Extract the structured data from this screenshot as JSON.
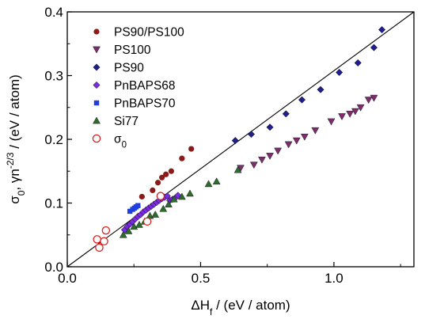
{
  "chart_data": {
    "type": "scatter",
    "xlim": [
      0.0,
      1.3
    ],
    "ylim": [
      0.0,
      0.4
    ],
    "xticks": [
      "0.0",
      "0.5",
      "1.0"
    ],
    "xtick_values": [
      0.0,
      0.5,
      1.0
    ],
    "yticks": [
      "0.0",
      "0.1",
      "0.2",
      "0.3",
      "0.4"
    ],
    "ytick_values": [
      0.0,
      0.1,
      0.2,
      0.3,
      0.4
    ],
    "xlabel": {
      "prefix": "ΔH",
      "sub": "f",
      "suffix": " / (eV / atom)"
    },
    "ylabel": {
      "a": "σ",
      "a_sub": "0",
      "b": ", γn",
      "b_sup": "-2/3",
      "c": " / (eV / atom)"
    },
    "legend_position": "top-left",
    "line": {
      "x": [
        0.0,
        1.3
      ],
      "y": [
        0.0,
        0.4
      ]
    },
    "series": [
      {
        "name": "PS90/PS100",
        "marker": "circle",
        "color": "#8B1A1A",
        "points": [
          [
            0.28,
            0.11
          ],
          [
            0.32,
            0.12
          ],
          [
            0.34,
            0.132
          ],
          [
            0.355,
            0.14
          ],
          [
            0.37,
            0.145
          ],
          [
            0.39,
            0.15
          ],
          [
            0.43,
            0.17
          ],
          [
            0.465,
            0.185
          ]
        ]
      },
      {
        "name": "PS100",
        "marker": "triangle-down",
        "color": "#7B2D6E",
        "points": [
          [
            0.65,
            0.155
          ],
          [
            0.7,
            0.16
          ],
          [
            0.73,
            0.168
          ],
          [
            0.76,
            0.174
          ],
          [
            0.79,
            0.182
          ],
          [
            0.83,
            0.192
          ],
          [
            0.86,
            0.198
          ],
          [
            0.89,
            0.204
          ],
          [
            0.93,
            0.214
          ],
          [
            0.99,
            0.228
          ],
          [
            1.03,
            0.236
          ],
          [
            1.06,
            0.24
          ],
          [
            1.08,
            0.244
          ],
          [
            1.1,
            0.25
          ],
          [
            1.13,
            0.262
          ],
          [
            1.15,
            0.265
          ]
        ]
      },
      {
        "name": "PS90",
        "marker": "diamond",
        "color": "#1F1F8F",
        "points": [
          [
            0.63,
            0.198
          ],
          [
            0.69,
            0.208
          ],
          [
            0.76,
            0.219
          ],
          [
            0.82,
            0.24
          ],
          [
            0.88,
            0.262
          ],
          [
            0.95,
            0.278
          ],
          [
            1.02,
            0.305
          ],
          [
            1.09,
            0.32
          ],
          [
            1.15,
            0.344
          ],
          [
            1.18,
            0.372
          ]
        ]
      },
      {
        "name": "PnBAPS68",
        "marker": "diamond",
        "color": "#7B2BE2",
        "points": [
          [
            0.215,
            0.058
          ],
          [
            0.225,
            0.063
          ],
          [
            0.235,
            0.067
          ],
          [
            0.245,
            0.071
          ],
          [
            0.255,
            0.075
          ],
          [
            0.265,
            0.079
          ],
          [
            0.275,
            0.082
          ],
          [
            0.285,
            0.086
          ],
          [
            0.295,
            0.089
          ],
          [
            0.305,
            0.092
          ],
          [
            0.315,
            0.095
          ],
          [
            0.325,
            0.098
          ],
          [
            0.335,
            0.101
          ],
          [
            0.345,
            0.104
          ],
          [
            0.355,
            0.107
          ],
          [
            0.365,
            0.109
          ],
          [
            0.375,
            0.111
          ],
          [
            0.385,
            0.104
          ],
          [
            0.395,
            0.106
          ],
          [
            0.405,
            0.108
          ],
          [
            0.415,
            0.112
          ]
        ]
      },
      {
        "name": "PnBAPS70",
        "marker": "square",
        "color": "#1F3FE0",
        "points": [
          [
            0.235,
            0.087
          ],
          [
            0.245,
            0.09
          ],
          [
            0.252,
            0.092
          ],
          [
            0.258,
            0.094
          ],
          [
            0.265,
            0.096
          ]
        ]
      },
      {
        "name": "Si77",
        "marker": "triangle-up",
        "color": "#2E6B2E",
        "points": [
          [
            0.21,
            0.05
          ],
          [
            0.23,
            0.056
          ],
          [
            0.25,
            0.063
          ],
          [
            0.27,
            0.066
          ],
          [
            0.29,
            0.071
          ],
          [
            0.31,
            0.08
          ],
          [
            0.33,
            0.082
          ],
          [
            0.36,
            0.091
          ],
          [
            0.38,
            0.098
          ],
          [
            0.4,
            0.106
          ],
          [
            0.43,
            0.11
          ],
          [
            0.46,
            0.115
          ],
          [
            0.53,
            0.13
          ],
          [
            0.56,
            0.134
          ],
          [
            0.64,
            0.152
          ]
        ]
      },
      {
        "name": "σ",
        "name_sub": "0",
        "marker": "open-circle",
        "color": "#E02020",
        "points": [
          [
            0.112,
            0.043
          ],
          [
            0.12,
            0.03
          ],
          [
            0.138,
            0.04
          ],
          [
            0.145,
            0.057
          ],
          [
            0.3,
            0.071
          ],
          [
            0.35,
            0.111
          ]
        ]
      }
    ]
  }
}
